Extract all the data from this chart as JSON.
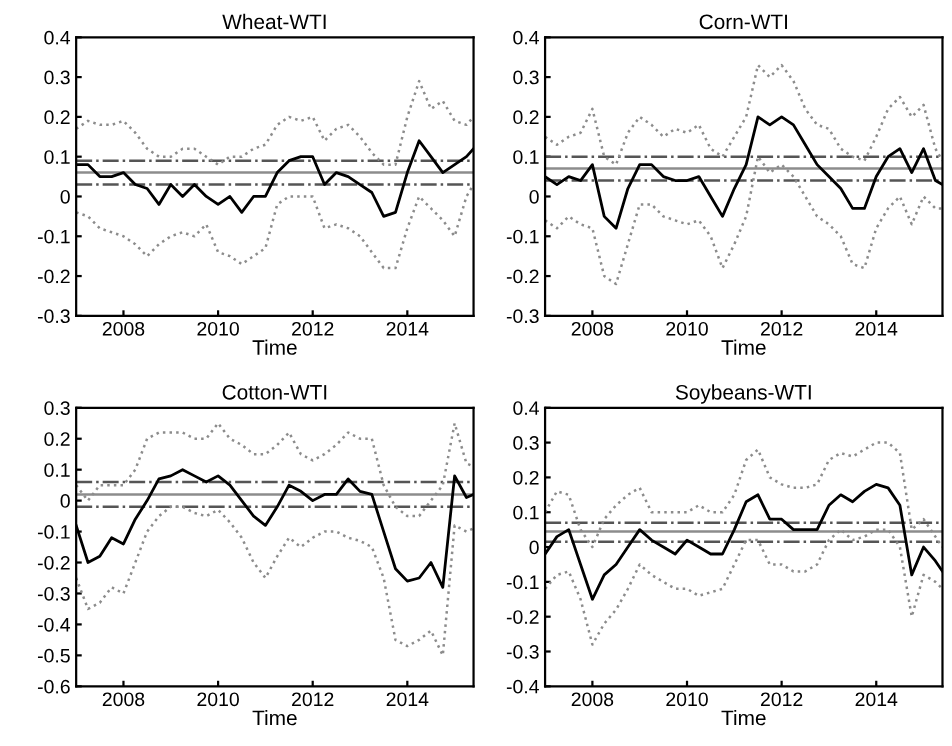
{
  "chart_data": [
    {
      "type": "line",
      "title": "Wheat-WTI",
      "xlabel": "Time",
      "x": [
        2007.0,
        2007.25,
        2007.5,
        2007.75,
        2008.0,
        2008.25,
        2008.5,
        2008.75,
        2009.0,
        2009.25,
        2009.5,
        2009.75,
        2010.0,
        2010.25,
        2010.5,
        2010.75,
        2011.0,
        2011.25,
        2011.5,
        2011.75,
        2012.0,
        2012.25,
        2012.5,
        2012.75,
        2013.0,
        2013.25,
        2013.5,
        2013.75,
        2014.0,
        2014.25,
        2014.5,
        2014.75,
        2015.0,
        2015.25,
        2015.4
      ],
      "series": [
        {
          "color": "#000000",
          "line_style": "solid",
          "values": [
            0.08,
            0.08,
            0.05,
            0.05,
            0.06,
            0.03,
            0.02,
            -0.02,
            0.03,
            0.0,
            0.03,
            0.0,
            -0.02,
            0.0,
            -0.04,
            0.0,
            0.0,
            0.06,
            0.09,
            0.1,
            0.1,
            0.03,
            0.06,
            0.05,
            0.03,
            0.01,
            -0.05,
            -0.04,
            0.06,
            0.14,
            0.1,
            0.06,
            0.08,
            0.1,
            0.12
          ]
        },
        {
          "color": "#8c8c8c",
          "line_style": "dotted",
          "values": [
            0.17,
            0.19,
            0.18,
            0.18,
            0.19,
            0.16,
            0.12,
            0.1,
            0.1,
            0.12,
            0.12,
            0.1,
            0.08,
            0.1,
            0.1,
            0.12,
            0.13,
            0.18,
            0.2,
            0.19,
            0.2,
            0.14,
            0.17,
            0.18,
            0.15,
            0.11,
            0.08,
            0.08,
            0.2,
            0.29,
            0.22,
            0.24,
            0.19,
            0.18,
            0.2
          ]
        },
        {
          "color": "#8c8c8c",
          "line_style": "dotted",
          "values": [
            -0.04,
            -0.05,
            -0.08,
            -0.09,
            -0.1,
            -0.12,
            -0.15,
            -0.12,
            -0.1,
            -0.09,
            -0.1,
            -0.07,
            -0.14,
            -0.15,
            -0.17,
            -0.15,
            -0.13,
            -0.02,
            0.0,
            0.0,
            0.0,
            -0.08,
            -0.07,
            -0.08,
            -0.1,
            -0.14,
            -0.18,
            -0.18,
            -0.08,
            0.0,
            -0.03,
            -0.06,
            -0.1,
            0.0,
            0.03
          ]
        }
      ],
      "ref_lines": [
        {
          "axis": "y",
          "value": 0.06,
          "color": "#8c8c8c",
          "line_style": "solid"
        },
        {
          "axis": "y",
          "value": 0.09,
          "color": "#555555",
          "line_style": "dashdot"
        },
        {
          "axis": "y",
          "value": 0.03,
          "color": "#555555",
          "line_style": "dashdot"
        }
      ],
      "xlim": [
        2007,
        2015.4
      ],
      "xticks": [
        2008,
        2010,
        2012,
        2014
      ],
      "ylim": [
        -0.3,
        0.4
      ],
      "yticks": [
        -0.3,
        -0.2,
        -0.1,
        0,
        0.1,
        0.2,
        0.3,
        0.4
      ]
    },
    {
      "type": "line",
      "title": "Corn-WTI",
      "xlabel": "Time",
      "x": [
        2007.0,
        2007.25,
        2007.5,
        2007.75,
        2008.0,
        2008.25,
        2008.5,
        2008.75,
        2009.0,
        2009.25,
        2009.5,
        2009.75,
        2010.0,
        2010.25,
        2010.5,
        2010.75,
        2011.0,
        2011.25,
        2011.5,
        2011.75,
        2012.0,
        2012.25,
        2012.5,
        2012.75,
        2013.0,
        2013.25,
        2013.5,
        2013.75,
        2014.0,
        2014.25,
        2014.5,
        2014.75,
        2015.0,
        2015.25,
        2015.4
      ],
      "series": [
        {
          "color": "#000000",
          "line_style": "solid",
          "values": [
            0.05,
            0.03,
            0.05,
            0.04,
            0.08,
            -0.05,
            -0.08,
            0.02,
            0.08,
            0.08,
            0.05,
            0.04,
            0.04,
            0.05,
            0.0,
            -0.05,
            0.02,
            0.08,
            0.2,
            0.18,
            0.2,
            0.18,
            0.13,
            0.08,
            0.05,
            0.02,
            -0.03,
            -0.03,
            0.05,
            0.1,
            0.12,
            0.06,
            0.12,
            0.04,
            0.03
          ]
        },
        {
          "color": "#8c8c8c",
          "line_style": "dotted",
          "values": [
            0.15,
            0.13,
            0.15,
            0.16,
            0.22,
            0.1,
            0.08,
            0.16,
            0.2,
            0.18,
            0.15,
            0.17,
            0.16,
            0.18,
            0.12,
            0.1,
            0.15,
            0.2,
            0.33,
            0.3,
            0.33,
            0.29,
            0.22,
            0.18,
            0.17,
            0.12,
            0.1,
            0.09,
            0.15,
            0.22,
            0.25,
            0.2,
            0.23,
            0.12,
            0.09
          ]
        },
        {
          "color": "#8c8c8c",
          "line_style": "dotted",
          "values": [
            -0.06,
            -0.08,
            -0.05,
            -0.07,
            -0.08,
            -0.2,
            -0.22,
            -0.12,
            -0.02,
            -0.02,
            -0.05,
            -0.06,
            -0.07,
            -0.06,
            -0.1,
            -0.18,
            -0.12,
            -0.05,
            0.1,
            0.06,
            0.08,
            0.05,
            0.0,
            -0.05,
            -0.07,
            -0.1,
            -0.17,
            -0.18,
            -0.08,
            -0.03,
            0.0,
            -0.07,
            0.0,
            -0.03,
            -0.03
          ]
        }
      ],
      "ref_lines": [
        {
          "axis": "y",
          "value": 0.07,
          "color": "#8c8c8c",
          "line_style": "solid"
        },
        {
          "axis": "y",
          "value": 0.1,
          "color": "#555555",
          "line_style": "dashdot"
        },
        {
          "axis": "y",
          "value": 0.04,
          "color": "#555555",
          "line_style": "dashdot"
        }
      ],
      "xlim": [
        2007,
        2015.4
      ],
      "xticks": [
        2008,
        2010,
        2012,
        2014
      ],
      "ylim": [
        -0.3,
        0.4
      ],
      "yticks": [
        -0.3,
        -0.2,
        -0.1,
        0,
        0.1,
        0.2,
        0.3,
        0.4
      ]
    },
    {
      "type": "line",
      "title": "Cotton-WTI",
      "xlabel": "Time",
      "x": [
        2007.0,
        2007.25,
        2007.5,
        2007.75,
        2008.0,
        2008.25,
        2008.5,
        2008.75,
        2009.0,
        2009.25,
        2009.5,
        2009.75,
        2010.0,
        2010.25,
        2010.5,
        2010.75,
        2011.0,
        2011.25,
        2011.5,
        2011.75,
        2012.0,
        2012.25,
        2012.5,
        2012.75,
        2013.0,
        2013.25,
        2013.5,
        2013.75,
        2014.0,
        2014.25,
        2014.5,
        2014.75,
        2015.0,
        2015.25,
        2015.4
      ],
      "series": [
        {
          "color": "#000000",
          "line_style": "solid",
          "values": [
            -0.08,
            -0.2,
            -0.18,
            -0.12,
            -0.14,
            -0.06,
            0.0,
            0.07,
            0.08,
            0.1,
            0.08,
            0.06,
            0.08,
            0.05,
            0.0,
            -0.05,
            -0.08,
            -0.02,
            0.05,
            0.03,
            0.0,
            0.02,
            0.02,
            0.07,
            0.03,
            0.02,
            -0.1,
            -0.22,
            -0.26,
            -0.25,
            -0.2,
            -0.28,
            0.08,
            0.01,
            0.02
          ]
        },
        {
          "color": "#8c8c8c",
          "line_style": "dotted",
          "values": [
            0.05,
            0.0,
            0.05,
            0.05,
            0.05,
            0.1,
            0.2,
            0.22,
            0.22,
            0.22,
            0.2,
            0.2,
            0.25,
            0.2,
            0.18,
            0.15,
            0.15,
            0.18,
            0.22,
            0.15,
            0.13,
            0.15,
            0.18,
            0.22,
            0.2,
            0.2,
            0.05,
            -0.02,
            -0.05,
            -0.05,
            0.0,
            0.05,
            0.25,
            0.12,
            0.11
          ]
        },
        {
          "color": "#8c8c8c",
          "line_style": "dotted",
          "values": [
            -0.25,
            -0.35,
            -0.33,
            -0.28,
            -0.3,
            -0.2,
            -0.1,
            -0.05,
            -0.02,
            -0.02,
            -0.04,
            -0.05,
            -0.03,
            -0.07,
            -0.12,
            -0.2,
            -0.25,
            -0.18,
            -0.12,
            -0.15,
            -0.12,
            -0.1,
            -0.1,
            -0.12,
            -0.13,
            -0.15,
            -0.25,
            -0.45,
            -0.47,
            -0.45,
            -0.42,
            -0.5,
            -0.08,
            -0.1,
            -0.09
          ]
        }
      ],
      "ref_lines": [
        {
          "axis": "y",
          "value": 0.02,
          "color": "#8c8c8c",
          "line_style": "solid"
        },
        {
          "axis": "y",
          "value": 0.06,
          "color": "#555555",
          "line_style": "dashdot"
        },
        {
          "axis": "y",
          "value": -0.02,
          "color": "#555555",
          "line_style": "dashdot"
        }
      ],
      "xlim": [
        2007,
        2015.4
      ],
      "xticks": [
        2008,
        2010,
        2012,
        2014
      ],
      "ylim": [
        -0.6,
        0.3
      ],
      "yticks": [
        -0.6,
        -0.5,
        -0.4,
        -0.3,
        -0.2,
        -0.1,
        0,
        0.1,
        0.2,
        0.3
      ]
    },
    {
      "type": "line",
      "title": "Soybeans-WTI",
      "xlabel": "Time",
      "x": [
        2007.0,
        2007.25,
        2007.5,
        2007.75,
        2008.0,
        2008.25,
        2008.5,
        2008.75,
        2009.0,
        2009.25,
        2009.5,
        2009.75,
        2010.0,
        2010.25,
        2010.5,
        2010.75,
        2011.0,
        2011.25,
        2011.5,
        2011.75,
        2012.0,
        2012.25,
        2012.5,
        2012.75,
        2013.0,
        2013.25,
        2013.5,
        2013.75,
        2014.0,
        2014.25,
        2014.5,
        2014.75,
        2015.0,
        2015.25,
        2015.4
      ],
      "series": [
        {
          "color": "#000000",
          "line_style": "solid",
          "values": [
            -0.02,
            0.03,
            0.05,
            -0.05,
            -0.15,
            -0.08,
            -0.05,
            0.0,
            0.05,
            0.02,
            0.0,
            -0.02,
            0.02,
            0.0,
            -0.02,
            -0.02,
            0.05,
            0.13,
            0.15,
            0.08,
            0.08,
            0.05,
            0.05,
            0.05,
            0.12,
            0.15,
            0.13,
            0.16,
            0.18,
            0.17,
            0.12,
            -0.08,
            0.0,
            -0.04,
            -0.07
          ]
        },
        {
          "color": "#8c8c8c",
          "line_style": "dotted",
          "values": [
            0.1,
            0.16,
            0.15,
            0.05,
            0.0,
            0.08,
            0.12,
            0.15,
            0.17,
            0.1,
            0.1,
            0.1,
            0.1,
            0.12,
            0.1,
            0.1,
            0.15,
            0.25,
            0.28,
            0.2,
            0.18,
            0.17,
            0.17,
            0.18,
            0.25,
            0.27,
            0.26,
            0.28,
            0.3,
            0.3,
            0.27,
            0.05,
            0.08,
            0.03,
            0.0
          ]
        },
        {
          "color": "#8c8c8c",
          "line_style": "dotted",
          "values": [
            -0.12,
            -0.08,
            -0.07,
            -0.15,
            -0.28,
            -0.22,
            -0.18,
            -0.12,
            -0.05,
            -0.08,
            -0.1,
            -0.12,
            -0.12,
            -0.14,
            -0.13,
            -0.12,
            -0.05,
            0.02,
            0.02,
            -0.05,
            -0.05,
            -0.07,
            -0.07,
            -0.05,
            0.02,
            0.05,
            0.02,
            0.03,
            0.05,
            0.05,
            0.0,
            -0.2,
            -0.08,
            -0.1,
            -0.12
          ]
        }
      ],
      "ref_lines": [
        {
          "axis": "y",
          "value": 0.045,
          "color": "#8c8c8c",
          "line_style": "solid"
        },
        {
          "axis": "y",
          "value": 0.07,
          "color": "#555555",
          "line_style": "dashdot"
        },
        {
          "axis": "y",
          "value": 0.015,
          "color": "#555555",
          "line_style": "dashdot"
        }
      ],
      "xlim": [
        2007,
        2015.4
      ],
      "xticks": [
        2008,
        2010,
        2012,
        2014
      ],
      "ylim": [
        -0.4,
        0.4
      ],
      "yticks": [
        -0.4,
        -0.3,
        -0.2,
        -0.1,
        0,
        0.1,
        0.2,
        0.3,
        0.4
      ]
    }
  ]
}
